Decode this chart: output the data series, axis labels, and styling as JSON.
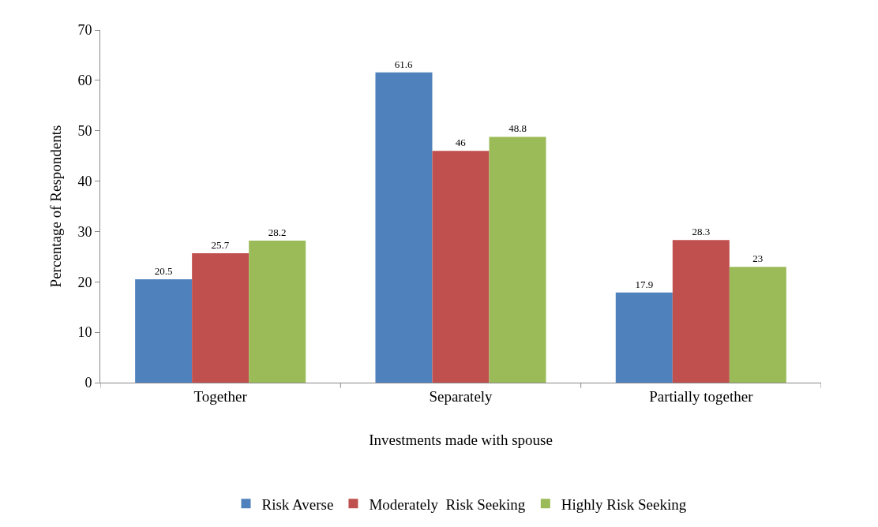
{
  "chart_data": {
    "type": "bar",
    "xlabel": "Investments made with spouse",
    "ylabel": "Percentage of Respondents",
    "categories": [
      "Together",
      "Separately",
      "Partially together"
    ],
    "series": [
      {
        "name": "Risk Averse",
        "color": "#4f81bd",
        "values": [
          20.5,
          61.6,
          17.9
        ]
      },
      {
        "name": "Moderately  Risk Seeking",
        "color": "#c0504d",
        "values": [
          25.7,
          46,
          28.3
        ]
      },
      {
        "name": "Highly Risk Seeking",
        "color": "#9bbb59",
        "values": [
          28.2,
          48.8,
          23
        ]
      }
    ],
    "ylim": [
      0,
      70
    ],
    "yticks": [
      0,
      10,
      20,
      30,
      40,
      50,
      60,
      70
    ],
    "grid": false,
    "legend": "bottom",
    "data_labels": true
  }
}
